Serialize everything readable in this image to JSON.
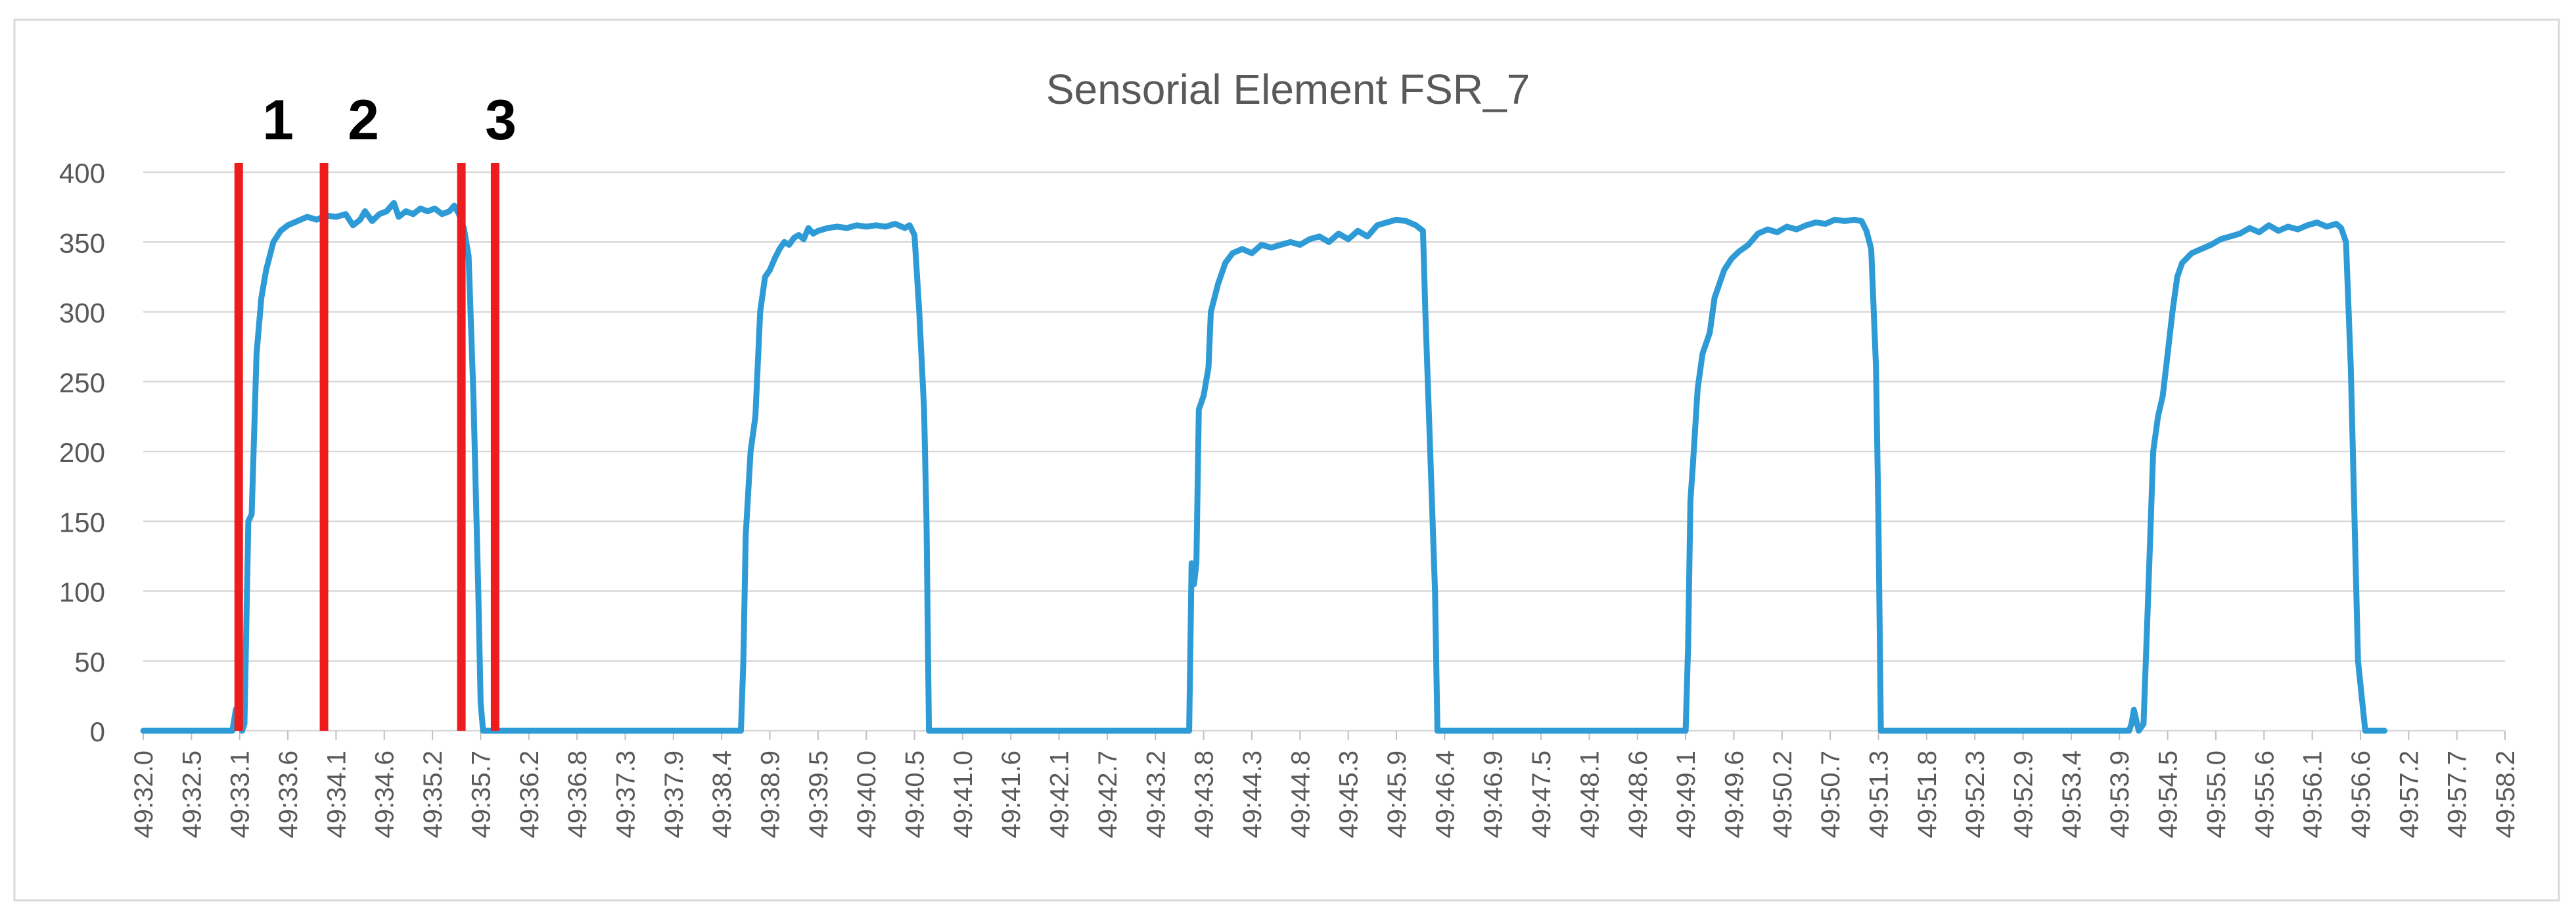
{
  "chart_data": {
    "type": "line",
    "title": "Sensorial Element FSR_7",
    "xlabel": "",
    "ylabel": "",
    "ylim": [
      0,
      400
    ],
    "y_ticks": [
      0,
      50,
      100,
      150,
      200,
      250,
      300,
      350,
      400
    ],
    "grid": "horizontal",
    "legend": "none",
    "x_tick_labels": [
      "49:32.0",
      "49:32.5",
      "49:33.1",
      "49:33.6",
      "49:34.1",
      "49:34.6",
      "49:35.2",
      "49:35.7",
      "49:36.2",
      "49:36.8",
      "49:37.3",
      "49:37.9",
      "49:38.4",
      "49:38.9",
      "49:39.5",
      "49:40.0",
      "49:40.5",
      "49:41.0",
      "49:41.6",
      "49:42.1",
      "49:42.7",
      "49:43.2",
      "49:43.8",
      "49:44.3",
      "49:44.8",
      "49:45.3",
      "49:45.9",
      "49:46.4",
      "49:46.9",
      "49:47.5",
      "49:48.1",
      "49:48.6",
      "49:49.1",
      "49:49.6",
      "49:50.2",
      "49:50.7",
      "49:51.3",
      "49:51.8",
      "49:52.3",
      "49:52.9",
      "49:53.4",
      "49:53.9",
      "49:54.5",
      "49:55.0",
      "49:55.6",
      "49:56.1",
      "49:56.6",
      "49:57.2",
      "49:57.7",
      "49:58.2"
    ],
    "series": [
      {
        "color": "#2e9bd6",
        "points": [
          [
            0,
            0
          ],
          [
            1.85,
            0
          ],
          [
            1.92,
            15
          ],
          [
            2.0,
            20
          ],
          [
            2.05,
            0
          ],
          [
            2.1,
            5
          ],
          [
            2.18,
            150
          ],
          [
            2.25,
            155
          ],
          [
            2.35,
            270
          ],
          [
            2.45,
            310
          ],
          [
            2.55,
            330
          ],
          [
            2.7,
            350
          ],
          [
            2.85,
            358
          ],
          [
            3.0,
            362
          ],
          [
            3.2,
            365
          ],
          [
            3.4,
            368
          ],
          [
            3.6,
            366
          ],
          [
            3.8,
            369
          ],
          [
            4.0,
            368
          ],
          [
            4.2,
            370
          ],
          [
            4.35,
            362
          ],
          [
            4.5,
            366
          ],
          [
            4.6,
            372
          ],
          [
            4.75,
            365
          ],
          [
            4.9,
            370
          ],
          [
            5.05,
            372
          ],
          [
            5.2,
            378
          ],
          [
            5.3,
            368
          ],
          [
            5.45,
            372
          ],
          [
            5.6,
            370
          ],
          [
            5.75,
            374
          ],
          [
            5.9,
            372
          ],
          [
            6.05,
            374
          ],
          [
            6.2,
            370
          ],
          [
            6.35,
            372
          ],
          [
            6.45,
            376
          ],
          [
            6.55,
            370
          ],
          [
            6.65,
            360
          ],
          [
            6.75,
            340
          ],
          [
            6.85,
            240
          ],
          [
            6.95,
            100
          ],
          [
            7.0,
            20
          ],
          [
            7.05,
            0
          ],
          [
            12.4,
            0
          ],
          [
            12.45,
            50
          ],
          [
            12.5,
            140
          ],
          [
            12.6,
            200
          ],
          [
            12.7,
            225
          ],
          [
            12.8,
            300
          ],
          [
            12.9,
            325
          ],
          [
            13.0,
            330
          ],
          [
            13.1,
            338
          ],
          [
            13.2,
            345
          ],
          [
            13.3,
            350
          ],
          [
            13.4,
            348
          ],
          [
            13.5,
            353
          ],
          [
            13.6,
            355
          ],
          [
            13.7,
            352
          ],
          [
            13.8,
            360
          ],
          [
            13.9,
            356
          ],
          [
            14.0,
            358
          ],
          [
            14.2,
            360
          ],
          [
            14.4,
            361
          ],
          [
            14.6,
            360
          ],
          [
            14.8,
            362
          ],
          [
            15.0,
            361
          ],
          [
            15.2,
            362
          ],
          [
            15.4,
            361
          ],
          [
            15.6,
            363
          ],
          [
            15.8,
            360
          ],
          [
            15.9,
            362
          ],
          [
            16.0,
            355
          ],
          [
            16.1,
            300
          ],
          [
            16.2,
            230
          ],
          [
            16.25,
            150
          ],
          [
            16.3,
            0
          ],
          [
            21.7,
            0
          ],
          [
            21.75,
            120
          ],
          [
            21.8,
            105
          ],
          [
            21.85,
            120
          ],
          [
            21.9,
            230
          ],
          [
            22.0,
            240
          ],
          [
            22.1,
            260
          ],
          [
            22.15,
            300
          ],
          [
            22.3,
            320
          ],
          [
            22.45,
            335
          ],
          [
            22.6,
            342
          ],
          [
            22.8,
            345
          ],
          [
            23.0,
            342
          ],
          [
            23.2,
            348
          ],
          [
            23.4,
            346
          ],
          [
            23.6,
            348
          ],
          [
            23.8,
            350
          ],
          [
            24.0,
            348
          ],
          [
            24.2,
            352
          ],
          [
            24.4,
            354
          ],
          [
            24.6,
            350
          ],
          [
            24.8,
            356
          ],
          [
            25.0,
            352
          ],
          [
            25.2,
            358
          ],
          [
            25.4,
            354
          ],
          [
            25.6,
            362
          ],
          [
            25.8,
            364
          ],
          [
            26.0,
            366
          ],
          [
            26.2,
            365
          ],
          [
            26.4,
            362
          ],
          [
            26.55,
            358
          ],
          [
            26.6,
            300
          ],
          [
            26.7,
            200
          ],
          [
            26.8,
            100
          ],
          [
            26.85,
            0
          ],
          [
            32.0,
            0
          ],
          [
            32.05,
            60
          ],
          [
            32.1,
            165
          ],
          [
            32.15,
            190
          ],
          [
            32.25,
            245
          ],
          [
            32.35,
            270
          ],
          [
            32.5,
            285
          ],
          [
            32.6,
            310
          ],
          [
            32.8,
            330
          ],
          [
            32.95,
            338
          ],
          [
            33.1,
            343
          ],
          [
            33.3,
            348
          ],
          [
            33.5,
            356
          ],
          [
            33.7,
            359
          ],
          [
            33.9,
            357
          ],
          [
            34.1,
            361
          ],
          [
            34.3,
            359
          ],
          [
            34.5,
            362
          ],
          [
            34.7,
            364
          ],
          [
            34.9,
            363
          ],
          [
            35.1,
            366
          ],
          [
            35.3,
            365
          ],
          [
            35.5,
            366
          ],
          [
            35.65,
            365
          ],
          [
            35.75,
            358
          ],
          [
            35.85,
            345
          ],
          [
            35.95,
            260
          ],
          [
            36.0,
            150
          ],
          [
            36.05,
            0
          ],
          [
            41.2,
            0
          ],
          [
            41.25,
            5
          ],
          [
            41.3,
            15
          ],
          [
            41.4,
            0
          ],
          [
            41.5,
            5
          ],
          [
            41.6,
            100
          ],
          [
            41.7,
            200
          ],
          [
            41.8,
            225
          ],
          [
            41.9,
            240
          ],
          [
            42.0,
            270
          ],
          [
            42.1,
            300
          ],
          [
            42.2,
            325
          ],
          [
            42.3,
            335
          ],
          [
            42.5,
            342
          ],
          [
            42.7,
            345
          ],
          [
            42.9,
            348
          ],
          [
            43.1,
            352
          ],
          [
            43.3,
            354
          ],
          [
            43.5,
            356
          ],
          [
            43.7,
            360
          ],
          [
            43.9,
            357
          ],
          [
            44.1,
            362
          ],
          [
            44.3,
            358
          ],
          [
            44.5,
            361
          ],
          [
            44.7,
            359
          ],
          [
            44.9,
            362
          ],
          [
            45.1,
            364
          ],
          [
            45.3,
            361
          ],
          [
            45.5,
            363
          ],
          [
            45.6,
            360
          ],
          [
            45.7,
            350
          ],
          [
            45.8,
            260
          ],
          [
            45.9,
            120
          ],
          [
            45.95,
            50
          ],
          [
            46.1,
            0
          ],
          [
            46.5,
            0
          ]
        ]
      }
    ],
    "markers": [
      {
        "x": 1.98,
        "label": "1"
      },
      {
        "x": 3.75,
        "label": "2"
      },
      {
        "x": 6.6,
        "label": "3"
      },
      {
        "x": 7.3,
        "label": ""
      }
    ]
  }
}
